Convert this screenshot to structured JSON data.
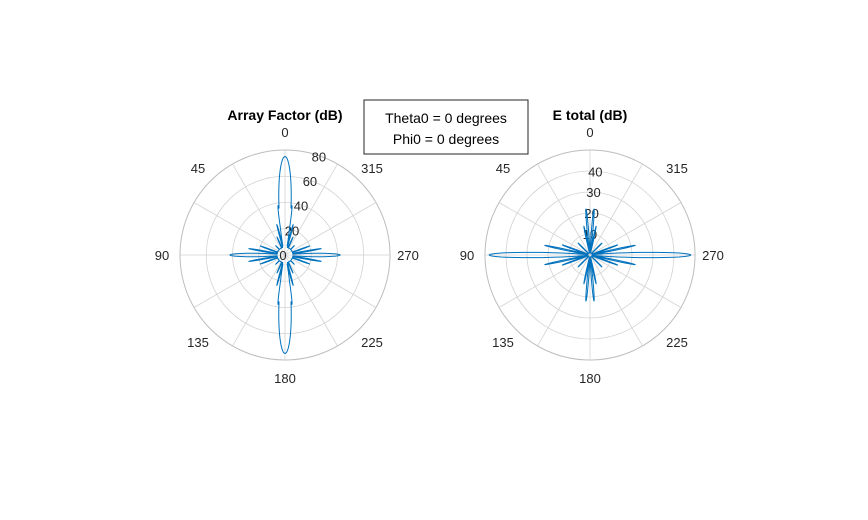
{
  "annotation": {
    "line1": "Theta0 = 0 degrees",
    "line2": "Phi0 = 0 degrees"
  },
  "colors": {
    "series": "#0072bd",
    "grid": "#d3d3d3",
    "text": "#262626"
  },
  "chart_data": [
    {
      "type": "polar",
      "title": "Array Factor (dB)",
      "theta_zero_location": "top",
      "theta_direction": "counterclockwise",
      "theta_ticks": [
        0,
        45,
        90,
        135,
        180,
        225,
        270,
        315
      ],
      "theta_tick_labels": [
        "0",
        "45",
        "90",
        "135",
        "180",
        "225",
        "270",
        "315"
      ],
      "r_lim": [
        0,
        80
      ],
      "r_ticks": [
        0,
        20,
        40,
        60,
        80
      ],
      "r_tick_labels": [
        "0",
        "20",
        "40",
        "60",
        "80"
      ],
      "r_label_angle": 340,
      "grid": true,
      "series": {
        "baseline": 6,
        "lobes": [
          {
            "center": 0,
            "peak": 75,
            "width": 6
          },
          {
            "center": 180,
            "peak": 75,
            "width": 6
          },
          {
            "center": 90,
            "peak": 42,
            "width": 3
          },
          {
            "center": 270,
            "peak": 42,
            "width": 3
          },
          {
            "center": 8,
            "peak": 38,
            "width": 1.5
          },
          {
            "center": 352,
            "peak": 38,
            "width": 1.5
          },
          {
            "center": 172,
            "peak": 38,
            "width": 1.5
          },
          {
            "center": 188,
            "peak": 38,
            "width": 1.5
          },
          {
            "center": 15,
            "peak": 24,
            "width": 1.2
          },
          {
            "center": 345,
            "peak": 24,
            "width": 1.2
          },
          {
            "center": 165,
            "peak": 24,
            "width": 1.2
          },
          {
            "center": 195,
            "peak": 24,
            "width": 1.2
          },
          {
            "center": 24,
            "peak": 15,
            "width": 1.2
          },
          {
            "center": 336,
            "peak": 15,
            "width": 1.2
          },
          {
            "center": 156,
            "peak": 15,
            "width": 1.2
          },
          {
            "center": 204,
            "peak": 15,
            "width": 1.2
          },
          {
            "center": 70,
            "peak": 20,
            "width": 1.2
          },
          {
            "center": 110,
            "peak": 20,
            "width": 1.2
          },
          {
            "center": 250,
            "peak": 20,
            "width": 1.2
          },
          {
            "center": 290,
            "peak": 20,
            "width": 1.2
          },
          {
            "center": 80,
            "peak": 28,
            "width": 1.2
          },
          {
            "center": 100,
            "peak": 28,
            "width": 1.2
          },
          {
            "center": 260,
            "peak": 28,
            "width": 1.2
          },
          {
            "center": 280,
            "peak": 28,
            "width": 1.2
          },
          {
            "center": 45,
            "peak": 10,
            "width": 1.5
          },
          {
            "center": 135,
            "peak": 10,
            "width": 1.5
          },
          {
            "center": 225,
            "peak": 10,
            "width": 1.5
          },
          {
            "center": 315,
            "peak": 10,
            "width": 1.5
          }
        ]
      }
    },
    {
      "type": "polar",
      "title": "E total (dB)",
      "theta_zero_location": "top",
      "theta_direction": "counterclockwise",
      "theta_ticks": [
        0,
        45,
        90,
        135,
        180,
        225,
        270,
        315
      ],
      "theta_tick_labels": [
        "0",
        "45",
        "90",
        "135",
        "180",
        "225",
        "270",
        "315"
      ],
      "r_lim": [
        0,
        50
      ],
      "r_ticks": [
        10,
        20,
        30,
        40
      ],
      "r_tick_labels": [
        "10",
        "20",
        "30",
        "40"
      ],
      "r_label_angle": 355,
      "grid": true,
      "series": {
        "baseline": 1,
        "lobes": [
          {
            "center": 90,
            "peak": 48,
            "width": 2.5
          },
          {
            "center": 270,
            "peak": 48,
            "width": 2.5
          },
          {
            "center": 5,
            "peak": 22,
            "width": 1.5
          },
          {
            "center": 355,
            "peak": 22,
            "width": 1.5
          },
          {
            "center": 175,
            "peak": 22,
            "width": 1.5
          },
          {
            "center": 185,
            "peak": 22,
            "width": 1.5
          },
          {
            "center": 12,
            "peak": 14,
            "width": 1.2
          },
          {
            "center": 348,
            "peak": 14,
            "width": 1.2
          },
          {
            "center": 168,
            "peak": 14,
            "width": 1.2
          },
          {
            "center": 192,
            "peak": 14,
            "width": 1.2
          },
          {
            "center": 78,
            "peak": 22,
            "width": 1.2
          },
          {
            "center": 102,
            "peak": 22,
            "width": 1.2
          },
          {
            "center": 258,
            "peak": 22,
            "width": 1.2
          },
          {
            "center": 282,
            "peak": 22,
            "width": 1.2
          },
          {
            "center": 70,
            "peak": 14,
            "width": 1.2
          },
          {
            "center": 110,
            "peak": 14,
            "width": 1.2
          },
          {
            "center": 250,
            "peak": 14,
            "width": 1.2
          },
          {
            "center": 290,
            "peak": 14,
            "width": 1.2
          },
          {
            "center": 45,
            "peak": 8,
            "width": 1.5
          },
          {
            "center": 135,
            "peak": 8,
            "width": 1.5
          },
          {
            "center": 225,
            "peak": 8,
            "width": 1.5
          },
          {
            "center": 315,
            "peak": 8,
            "width": 1.5
          }
        ]
      }
    }
  ]
}
